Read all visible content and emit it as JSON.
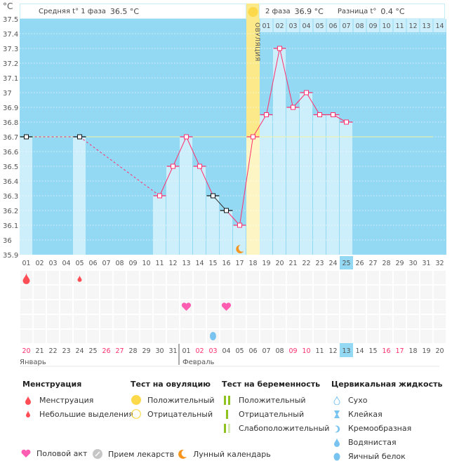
{
  "unit_label": "°C",
  "header": {
    "phase1_label": "Средняя t° 1 фаза",
    "phase1_value": "36.5 °C",
    "phase2_label": "2 фаза",
    "phase2_value": "36.9 °C",
    "diff_label": "Разница t°",
    "diff_value": "0.4 °C"
  },
  "ovulation_label": "ОВУЛЯЦИЯ",
  "colors": {
    "bg": "#93d9f3",
    "bar": "#cdeefb",
    "line": "#ff2f6e",
    "ovulation": "#fbe98a",
    "coverline": "#f6f3a0"
  },
  "chart_data": {
    "type": "line",
    "title": "",
    "ylabel": "°C",
    "ylim": [
      35.9,
      37.5
    ],
    "yticks": [
      "37.5",
      "37.4",
      "37.3",
      "37.2",
      "37.1",
      "37",
      "36.9",
      "36.8",
      "36.7",
      "36.6",
      "36.5",
      "36.4",
      "36.3",
      "36.2",
      "36.1",
      "36",
      "35.9"
    ],
    "cycle_days": [
      "01",
      "02",
      "03",
      "04",
      "05",
      "06",
      "07",
      "08",
      "09",
      "10",
      "11",
      "12",
      "13",
      "14",
      "15",
      "16",
      "17",
      "18",
      "19",
      "20",
      "21",
      "22",
      "23",
      "24",
      "25",
      "26",
      "27",
      "28",
      "29",
      "30",
      "31",
      "32"
    ],
    "current_day": "25",
    "dpo_labels": [
      "01",
      "02",
      "03",
      "04",
      "05",
      "06",
      "07",
      "08",
      "09",
      "10",
      "11",
      "12",
      "13",
      "14"
    ],
    "ovulation_day": 18,
    "coverline": 36.7,
    "points": [
      {
        "day": 1,
        "t": 36.7,
        "excluded": true
      },
      {
        "day": 5,
        "t": 36.7,
        "excluded": true
      },
      {
        "day": 11,
        "t": 36.3
      },
      {
        "day": 12,
        "t": 36.5
      },
      {
        "day": 13,
        "t": 36.7
      },
      {
        "day": 14,
        "t": 36.5
      },
      {
        "day": 15,
        "t": 36.3,
        "excluded": true
      },
      {
        "day": 16,
        "t": 36.2,
        "excluded": true
      },
      {
        "day": 17,
        "t": 36.1
      },
      {
        "day": 18,
        "t": 36.7
      },
      {
        "day": 19,
        "t": 36.85
      },
      {
        "day": 20,
        "t": 37.3
      },
      {
        "day": 21,
        "t": 36.9
      },
      {
        "day": 22,
        "t": 37.0
      },
      {
        "day": 23,
        "t": 36.85
      },
      {
        "day": 24,
        "t": 36.85
      },
      {
        "day": 25,
        "t": 36.8
      }
    ],
    "moon_day": 17
  },
  "events": {
    "menstruation": [
      {
        "day": 1,
        "size": "big"
      },
      {
        "day": 5,
        "size": "small"
      }
    ],
    "intercourse": [
      13,
      16
    ],
    "cervical_egg_white": [
      15
    ]
  },
  "dates": [
    "20",
    "21",
    "22",
    "23",
    "24",
    "25",
    "26",
    "27",
    "28",
    "29",
    "30",
    "31",
    "01",
    "02",
    "03",
    "04",
    "05",
    "06",
    "07",
    "08",
    "09",
    "10",
    "11",
    "12",
    "13",
    "14",
    "15",
    "16",
    "17",
    "18",
    "19",
    "20"
  ],
  "weekend_indices": [
    0,
    6,
    7,
    13,
    14,
    20,
    21,
    27,
    28
  ],
  "today_index": 24,
  "months": [
    "Январь",
    "Февраль"
  ],
  "legend": {
    "menstruation": {
      "title": "Менструация",
      "items": [
        "Менструация",
        "Небольшие выделения"
      ]
    },
    "ovulation_test": {
      "title": "Тест на овуляцию",
      "items": [
        "Положительный",
        "Отрицательный"
      ]
    },
    "pregnancy_test": {
      "title": "Тест на беременность",
      "items": [
        "Положительный",
        "Отрицательный",
        "Слабоположительный"
      ]
    },
    "cervical": {
      "title": "Цервикальная жидкость",
      "items": [
        "Сухо",
        "Клейкая",
        "Кремообразная",
        "Водянистая",
        "Яичный белок"
      ]
    },
    "bottom": [
      "Половой акт",
      "Прием лекарств",
      "Лунный календарь"
    ]
  }
}
